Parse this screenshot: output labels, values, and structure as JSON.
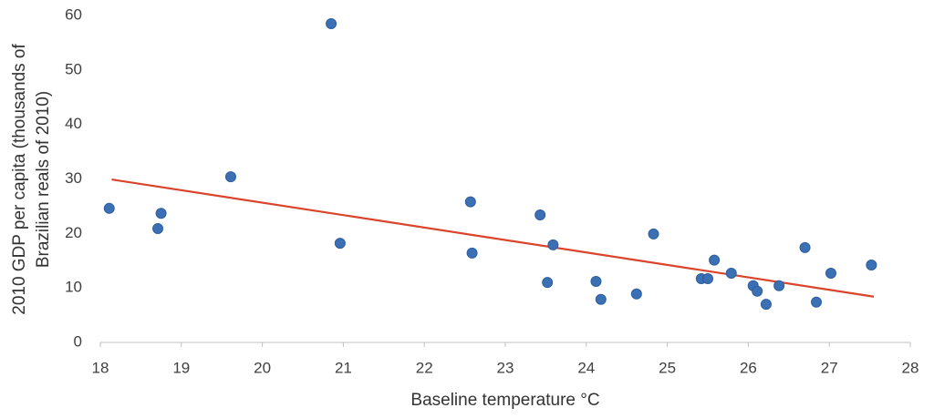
{
  "chart_data": {
    "type": "scatter",
    "xlabel": "Baseline temperature °C",
    "ylabel": [
      "2010  GDP per capita (thousands of",
      "Brazilian reals of 2010)"
    ],
    "xlim": [
      18,
      28
    ],
    "xticks": [
      18,
      19,
      20,
      21,
      22,
      23,
      24,
      25,
      26,
      27,
      28
    ],
    "ylim": [
      0,
      60
    ],
    "yticks": [
      0,
      10,
      20,
      30,
      40,
      50,
      60
    ],
    "grid": false,
    "color": "#3b70b5",
    "x": [
      18.11,
      18.71,
      18.75,
      19.61,
      20.85,
      20.96,
      22.57,
      22.59,
      23.43,
      23.52,
      23.59,
      24.12,
      24.18,
      24.62,
      24.83,
      25.42,
      25.5,
      25.58,
      25.79,
      26.06,
      26.11,
      26.22,
      26.38,
      26.7,
      26.84,
      27.02,
      27.52
    ],
    "values": [
      24.6,
      20.9,
      23.7,
      30.4,
      58.5,
      18.2,
      25.8,
      16.4,
      23.4,
      11.0,
      17.9,
      11.2,
      7.9,
      8.9,
      19.9,
      11.7,
      11.7,
      15.1,
      12.7,
      10.4,
      9.4,
      7.0,
      10.4,
      17.4,
      7.4,
      12.7,
      14.2
    ],
    "trendline": {
      "color": "#d9442b",
      "x": [
        18.14,
        27.55
      ],
      "values": [
        29.9,
        8.4
      ]
    }
  }
}
